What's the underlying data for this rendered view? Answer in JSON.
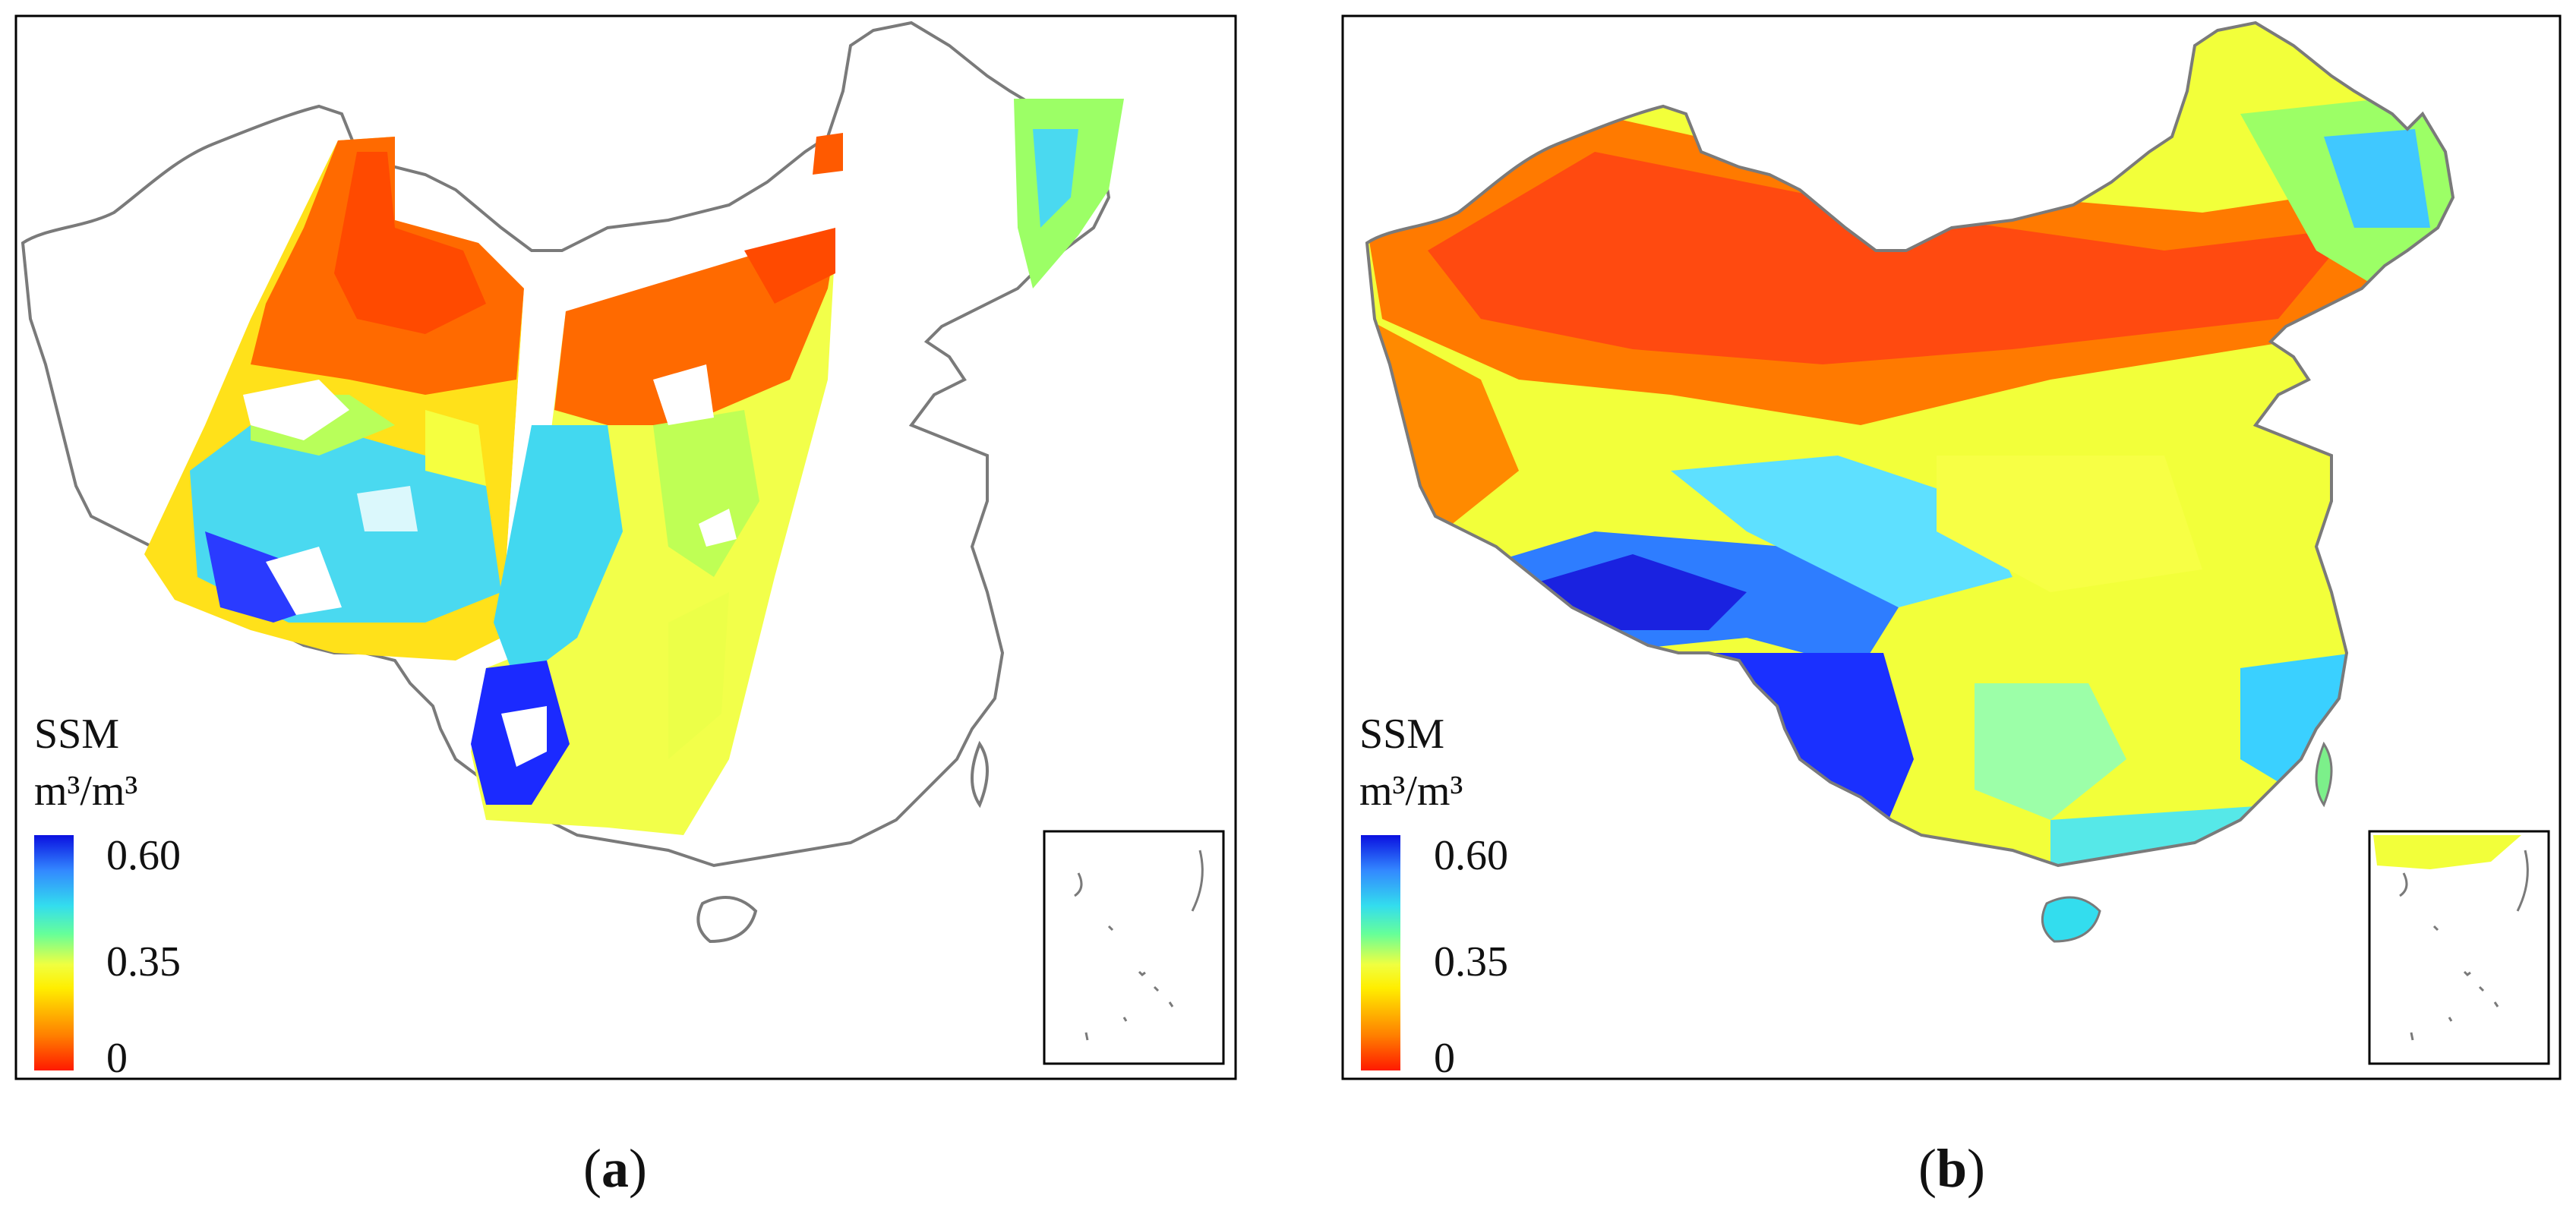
{
  "figure": {
    "panels": [
      {
        "id": "a",
        "caption_open": "(",
        "caption_letter": "a",
        "caption_close": ")",
        "legend": {
          "title": "SSM",
          "unit": "m³/m³",
          "ticks": [
            "0.60",
            "0.35",
            "0"
          ]
        }
      },
      {
        "id": "b",
        "caption_open": "(",
        "caption_letter": "b",
        "caption_close": ")",
        "legend": {
          "title": "SSM",
          "unit": "m³/m³",
          "ticks": [
            "0.60",
            "0.35",
            "0"
          ]
        }
      }
    ],
    "colormap": {
      "min": 0,
      "mid": 0.35,
      "max": 0.6,
      "stops": [
        "#ff1a00",
        "#ff8000",
        "#ffe600",
        "#ffff33",
        "#9cff66",
        "#33ffcc",
        "#33ccff",
        "#2a66ff",
        "#0a10e0"
      ]
    },
    "colors": {
      "border": "#7a7a7a",
      "frame": "#000000"
    }
  }
}
